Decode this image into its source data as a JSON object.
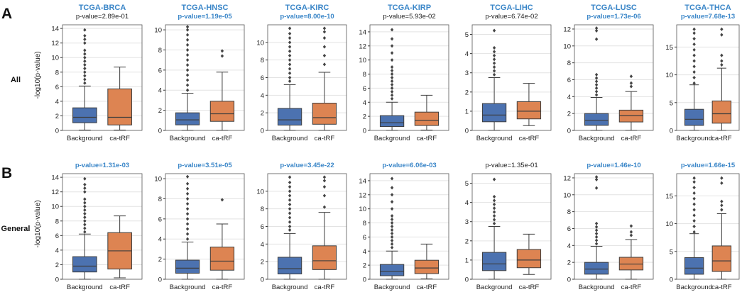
{
  "figure": {
    "panel_labels": [
      "A",
      "B"
    ],
    "row_labels": [
      "All",
      "General"
    ],
    "cancers": [
      "TCGA-BRCA",
      "TCGA-HNSC",
      "TCGA-KIRC",
      "TCGA-KIRP",
      "TCGA-LIHC",
      "TCGA-LUSC",
      "TCGA-THCA"
    ],
    "ylabel": "-log10(p-value)",
    "categories": [
      "Background",
      "ca-tRF"
    ]
  },
  "colors": {
    "background_box": "#4c72b0",
    "catrf_box": "#dd8452",
    "significant_text": "#3a86c8",
    "nonsignificant_text": "#222222",
    "title_text": "#3a86c8",
    "panel_label": "#111111",
    "grid": "#e3e3e3",
    "axis": "#333333",
    "whisker": "#3d3d3d"
  },
  "chart_data": [
    {
      "type": "box",
      "row": "All",
      "title": "TCGA-BRCA",
      "subtitle": "p-value=2.89e-01",
      "significant": false,
      "ylim": [
        0,
        14.5
      ],
      "yticks": [
        0,
        2,
        4,
        6,
        8,
        10,
        12,
        14
      ],
      "xlabel": "",
      "ylabel": "-log10(p-value)",
      "series": [
        {
          "name": "Background",
          "min": 0.05,
          "q1": 1.05,
          "median": 1.8,
          "q3": 3.1,
          "max": 6.1,
          "outliers": [
            6.5,
            7,
            7.5,
            8,
            8.5,
            9,
            9.5,
            10,
            10.5,
            11,
            12,
            12.5,
            13,
            13.8
          ]
        },
        {
          "name": "ca-tRF",
          "min": 0.05,
          "q1": 0.75,
          "median": 1.8,
          "q3": 5.7,
          "max": 8.7,
          "outliers": []
        }
      ]
    },
    {
      "type": "box",
      "row": "All",
      "title": "TCGA-HNSC",
      "subtitle": "p-value=1.19e-05",
      "significant": true,
      "ylim": [
        0,
        10.5
      ],
      "yticks": [
        0,
        2,
        4,
        6,
        8,
        10
      ],
      "xlabel": "",
      "ylabel": "-log10(p-value)",
      "series": [
        {
          "name": "Background",
          "min": 0.0,
          "q1": 0.55,
          "median": 1.05,
          "q3": 1.75,
          "max": 3.7,
          "outliers": [
            4,
            4.5,
            5,
            5.5,
            6,
            6.5,
            7,
            7.5,
            8,
            8.5,
            9,
            9.5,
            10,
            10.3
          ]
        },
        {
          "name": "ca-tRF",
          "min": 0.0,
          "q1": 0.9,
          "median": 1.65,
          "q3": 2.9,
          "max": 5.8,
          "outliers": [
            7.4,
            7.9
          ]
        }
      ]
    },
    {
      "type": "box",
      "row": "All",
      "title": "TCGA-KIRC",
      "subtitle": "p-value=8.00e-10",
      "significant": true,
      "ylim": [
        0,
        12
      ],
      "yticks": [
        0,
        2,
        4,
        6,
        8,
        10
      ],
      "xlabel": "",
      "ylabel": "-log10(p-value)",
      "series": [
        {
          "name": "Background",
          "min": 0.0,
          "q1": 0.6,
          "median": 1.2,
          "q3": 2.5,
          "max": 5.2,
          "outliers": [
            5.6,
            6,
            6.5,
            7,
            7.5,
            8,
            8.5,
            9,
            9.5,
            10,
            10.5,
            11,
            11.6
          ]
        },
        {
          "name": "ca-tRF",
          "min": 0.0,
          "q1": 0.7,
          "median": 1.45,
          "q3": 3.1,
          "max": 6.6,
          "outliers": [
            7.5,
            8.5,
            9.5,
            10.5,
            11.2,
            11.6
          ]
        }
      ]
    },
    {
      "type": "box",
      "row": "All",
      "title": "TCGA-KIRP",
      "subtitle": "p-value=5.93e-02",
      "significant": false,
      "ylim": [
        0,
        15
      ],
      "yticks": [
        0,
        2,
        4,
        6,
        8,
        10,
        12,
        14
      ],
      "xlabel": "",
      "ylabel": "-log10(p-value)",
      "series": [
        {
          "name": "Background",
          "min": 0.0,
          "q1": 0.55,
          "median": 1.1,
          "q3": 2.1,
          "max": 4.0,
          "outliers": [
            4.5,
            5,
            5.5,
            6,
            6.5,
            7,
            7.5,
            8,
            8.5,
            9,
            10,
            11,
            12,
            13,
            14.3
          ]
        },
        {
          "name": "ca-tRF",
          "min": 0.05,
          "q1": 0.7,
          "median": 1.45,
          "q3": 2.6,
          "max": 5.0,
          "outliers": []
        }
      ]
    },
    {
      "type": "box",
      "row": "All",
      "title": "TCGA-LIHC",
      "subtitle": "p-value=6.74e-02",
      "significant": false,
      "ylim": [
        0,
        5.5
      ],
      "yticks": [
        0,
        1,
        2,
        3,
        4,
        5
      ],
      "xlabel": "",
      "ylabel": "-log10(p-value)",
      "series": [
        {
          "name": "Background",
          "min": 0.0,
          "q1": 0.45,
          "median": 0.8,
          "q3": 1.4,
          "max": 2.75,
          "outliers": [
            2.9,
            3.1,
            3.3,
            3.5,
            3.7,
            3.9,
            4.1,
            4.3,
            5.2
          ]
        },
        {
          "name": "ca-tRF",
          "min": 0.25,
          "q1": 0.6,
          "median": 1.0,
          "q3": 1.5,
          "max": 2.45,
          "outliers": []
        }
      ]
    },
    {
      "type": "box",
      "row": "All",
      "title": "TCGA-LUSC",
      "subtitle": "p-value=1.73e-06",
      "significant": true,
      "ylim": [
        0,
        12.5
      ],
      "yticks": [
        0,
        2,
        4,
        6,
        8,
        10,
        12
      ],
      "xlabel": "",
      "ylabel": "-log10(p-value)",
      "series": [
        {
          "name": "Background",
          "min": 0.0,
          "q1": 0.6,
          "median": 1.2,
          "q3": 2.0,
          "max": 3.9,
          "outliers": [
            4.2,
            4.6,
            5,
            5.4,
            5.8,
            6.2,
            6.6,
            10.8,
            11.8,
            12.1
          ]
        },
        {
          "name": "ca-tRF",
          "min": 0.0,
          "q1": 1.0,
          "median": 1.75,
          "q3": 2.4,
          "max": 4.6,
          "outliers": [
            5.2,
            5.6,
            6.4
          ]
        }
      ]
    },
    {
      "type": "box",
      "row": "All",
      "title": "TCGA-THCA",
      "subtitle": "p-value=7.68e-13",
      "significant": true,
      "ylim": [
        0,
        19
      ],
      "yticks": [
        0,
        5,
        10,
        15
      ],
      "xlabel": "",
      "ylabel": "-log10(p-value)",
      "series": [
        {
          "name": "Background",
          "min": 0.0,
          "q1": 0.9,
          "median": 2.0,
          "q3": 3.8,
          "max": 8.2,
          "outliers": [
            8.5,
            9.5,
            10.5,
            11.5,
            12.5,
            13.5,
            14.5,
            15.5,
            16.5,
            17.5,
            18.2
          ]
        },
        {
          "name": "ca-tRF",
          "min": 0.0,
          "q1": 1.3,
          "median": 3.0,
          "q3": 5.3,
          "max": 11.2,
          "outliers": [
            11.8,
            12.5,
            13.5,
            17.2,
            18.2
          ]
        }
      ]
    },
    {
      "type": "box",
      "row": "General",
      "title": "TCGA-BRCA",
      "subtitle": "p-value=1.31e-03",
      "significant": true,
      "ylim": [
        0,
        14.5
      ],
      "yticks": [
        0,
        2,
        4,
        6,
        8,
        10,
        12,
        14
      ],
      "xlabel": "",
      "ylabel": "-log10(p-value)",
      "series": [
        {
          "name": "Background",
          "min": 0.0,
          "q1": 1.0,
          "median": 1.8,
          "q3": 3.1,
          "max": 6.2,
          "outliers": [
            6.5,
            7,
            7.5,
            8,
            8.5,
            9,
            9.5,
            10,
            10.5,
            11,
            12,
            12.5,
            13,
            13.8
          ]
        },
        {
          "name": "ca-tRF",
          "min": 0.2,
          "q1": 1.4,
          "median": 3.9,
          "q3": 6.4,
          "max": 8.7,
          "outliers": []
        }
      ]
    },
    {
      "type": "box",
      "row": "General",
      "title": "TCGA-HNSC",
      "subtitle": "p-value=3.51e-05",
      "significant": true,
      "ylim": [
        0,
        10.5
      ],
      "yticks": [
        0,
        2,
        4,
        6,
        8,
        10
      ],
      "xlabel": "",
      "ylabel": "-log10(p-value)",
      "series": [
        {
          "name": "Background",
          "min": 0.0,
          "q1": 0.6,
          "median": 1.1,
          "q3": 1.9,
          "max": 3.7,
          "outliers": [
            4,
            4.5,
            5,
            5.5,
            6,
            6.5,
            7,
            7.5,
            8,
            8.5,
            9,
            9.5,
            10.2
          ]
        },
        {
          "name": "ca-tRF",
          "min": 0.0,
          "q1": 0.9,
          "median": 1.8,
          "q3": 3.2,
          "max": 5.5,
          "outliers": [
            7.9
          ]
        }
      ]
    },
    {
      "type": "box",
      "row": "General",
      "title": "TCGA-KIRC",
      "subtitle": "p-value=3.45e-22",
      "significant": true,
      "ylim": [
        0,
        12
      ],
      "yticks": [
        0,
        2,
        4,
        6,
        8,
        10
      ],
      "xlabel": "",
      "ylabel": "-log10(p-value)",
      "series": [
        {
          "name": "Background",
          "min": 0.0,
          "q1": 0.6,
          "median": 1.2,
          "q3": 2.5,
          "max": 5.2,
          "outliers": [
            5.6,
            6,
            6.5,
            7,
            7.5,
            8,
            8.5,
            9,
            9.5,
            10,
            10.5,
            11,
            11.6
          ]
        },
        {
          "name": "ca-tRF",
          "min": 0.0,
          "q1": 1.1,
          "median": 2.1,
          "q3": 3.8,
          "max": 7.6,
          "outliers": [
            8.2,
            9.5,
            10.5,
            11.2,
            11.6
          ]
        }
      ]
    },
    {
      "type": "box",
      "row": "General",
      "title": "TCGA-KIRP",
      "subtitle": "p-value=6.06e-03",
      "significant": true,
      "ylim": [
        0,
        15
      ],
      "yticks": [
        0,
        2,
        4,
        6,
        8,
        10,
        12,
        14
      ],
      "xlabel": "",
      "ylabel": "-log10(p-value)",
      "series": [
        {
          "name": "Background",
          "min": 0.0,
          "q1": 0.5,
          "median": 1.1,
          "q3": 2.1,
          "max": 4.0,
          "outliers": [
            4.5,
            5,
            5.5,
            6,
            6.5,
            7,
            7.5,
            8,
            8.5,
            9,
            10,
            11,
            12,
            13,
            14.3
          ]
        },
        {
          "name": "ca-tRF",
          "min": 0.05,
          "q1": 0.8,
          "median": 1.6,
          "q3": 2.7,
          "max": 5.0,
          "outliers": []
        }
      ]
    },
    {
      "type": "box",
      "row": "General",
      "title": "TCGA-LIHC",
      "subtitle": "p-value=1.35e-01",
      "significant": false,
      "ylim": [
        0,
        5.5
      ],
      "yticks": [
        0,
        1,
        2,
        3,
        4,
        5
      ],
      "xlabel": "",
      "ylabel": "-log10(p-value)",
      "series": [
        {
          "name": "Background",
          "min": 0.0,
          "q1": 0.45,
          "median": 0.8,
          "q3": 1.4,
          "max": 2.75,
          "outliers": [
            2.9,
            3.1,
            3.3,
            3.5,
            3.7,
            3.9,
            4.1,
            4.3,
            5.2
          ]
        },
        {
          "name": "ca-tRF",
          "min": 0.25,
          "q1": 0.6,
          "median": 1.0,
          "q3": 1.55,
          "max": 2.35,
          "outliers": []
        }
      ]
    },
    {
      "type": "box",
      "row": "General",
      "title": "TCGA-LUSC",
      "subtitle": "p-value=1.46e-10",
      "significant": true,
      "ylim": [
        0,
        12.5
      ],
      "yticks": [
        0,
        2,
        4,
        6,
        8,
        10,
        12
      ],
      "xlabel": "",
      "ylabel": "-log10(p-value)",
      "series": [
        {
          "name": "Background",
          "min": 0.0,
          "q1": 0.6,
          "median": 1.2,
          "q3": 2.0,
          "max": 3.9,
          "outliers": [
            4.2,
            4.6,
            5,
            5.4,
            5.8,
            6.2,
            6.6,
            10.8,
            11.8,
            12.1
          ]
        },
        {
          "name": "ca-tRF",
          "min": 0.0,
          "q1": 1.1,
          "median": 1.8,
          "q3": 2.6,
          "max": 4.7,
          "outliers": [
            5.2,
            5.6,
            6.3
          ]
        }
      ]
    },
    {
      "type": "box",
      "row": "General",
      "title": "TCGA-THCA",
      "subtitle": "p-value=1.66e-15",
      "significant": true,
      "ylim": [
        0,
        19
      ],
      "yticks": [
        0,
        5,
        10,
        15
      ],
      "xlabel": "",
      "ylabel": "-log10(p-value)",
      "series": [
        {
          "name": "Background",
          "min": 0.0,
          "q1": 0.9,
          "median": 2.0,
          "q3": 3.9,
          "max": 8.2,
          "outliers": [
            8.5,
            9.5,
            10.5,
            11.5,
            12.5,
            13.5,
            14.5,
            15.5,
            16.5,
            17.5,
            18.2
          ]
        },
        {
          "name": "ca-tRF",
          "min": 0.0,
          "q1": 1.4,
          "median": 3.3,
          "q3": 6.0,
          "max": 11.8,
          "outliers": [
            12.5,
            13.3,
            14,
            17.3,
            18.2
          ]
        }
      ]
    }
  ]
}
